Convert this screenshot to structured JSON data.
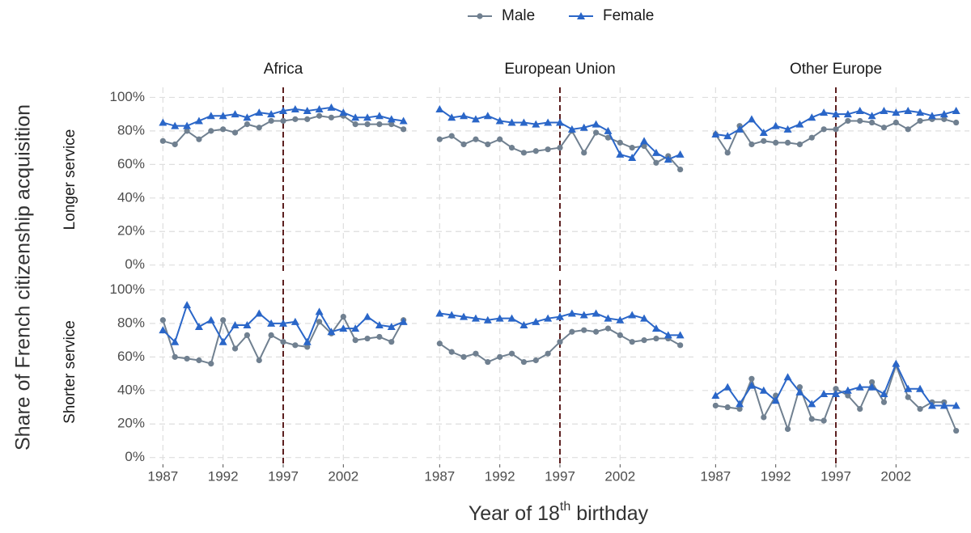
{
  "chart_data": {
    "type": "line",
    "y_label": "Share of French citizenship acquisition",
    "x_label": [
      "Year of 18",
      "th",
      " birthday"
    ],
    "legend": "top",
    "grid": true,
    "vline": 1997,
    "vline_color": "#5c1f1f",
    "x": [
      1987,
      1988,
      1989,
      1990,
      1991,
      1992,
      1993,
      1994,
      1995,
      1996,
      1997,
      1998,
      1999,
      2000,
      2001,
      2002,
      2003,
      2004,
      2005,
      2006,
      2007
    ],
    "xlim": [
      1985.9,
      2008.1
    ],
    "xticks": [
      1987,
      1992,
      1997,
      2002
    ],
    "ylim": [
      -4,
      106
    ],
    "yticks": [
      {
        "value": 0,
        "label": "0%"
      },
      {
        "value": 20,
        "label": "20%"
      },
      {
        "value": 40,
        "label": "40%"
      },
      {
        "value": 60,
        "label": "60%"
      },
      {
        "value": 80,
        "label": "80%"
      },
      {
        "value": 100,
        "label": "100%"
      }
    ],
    "columns": [
      "Africa",
      "European Union",
      "Other Europe"
    ],
    "rows": [
      "Longer service",
      "Shorter service"
    ],
    "series": [
      {
        "name": "Male",
        "color": "#708090",
        "marker": "circle"
      },
      {
        "name": "Female",
        "color": "#2a66c8",
        "marker": "triangle"
      }
    ],
    "panels": [
      [
        {
          "series": [
            {
              "values": [
                74,
                72,
                80,
                75,
                80,
                81,
                79,
                84,
                82,
                86,
                86,
                87,
                87,
                89,
                88,
                89,
                84,
                84,
                84,
                84,
                81
              ]
            },
            {
              "values": [
                85,
                83,
                83,
                86,
                89,
                89,
                90,
                88,
                91,
                90,
                92,
                93,
                92,
                93,
                94,
                91,
                88,
                88,
                89,
                87,
                86
              ]
            }
          ]
        },
        {
          "series": [
            {
              "values": [
                75,
                77,
                72,
                75,
                72,
                75,
                70,
                67,
                68,
                69,
                70,
                80,
                67,
                79,
                76,
                73,
                70,
                71,
                61,
                65,
                57
              ]
            },
            {
              "values": [
                93,
                88,
                89,
                87,
                89,
                86,
                85,
                85,
                84,
                85,
                85,
                81,
                82,
                84,
                80,
                66,
                64,
                74,
                67,
                63,
                66
              ]
            }
          ]
        },
        {
          "series": [
            {
              "values": [
                78,
                67,
                83,
                72,
                74,
                73,
                73,
                72,
                76,
                81,
                81,
                86,
                86,
                85,
                82,
                85,
                81,
                86,
                87,
                87,
                85
              ]
            },
            {
              "values": [
                78,
                77,
                81,
                87,
                79,
                83,
                81,
                84,
                88,
                91,
                90,
                90,
                92,
                89,
                92,
                91,
                92,
                91,
                89,
                90,
                92
              ]
            }
          ]
        }
      ],
      [
        {
          "series": [
            {
              "values": [
                82,
                60,
                59,
                58,
                56,
                82,
                65,
                73,
                58,
                73,
                69,
                67,
                66,
                81,
                74,
                84,
                70,
                71,
                72,
                69,
                82
              ]
            },
            {
              "values": [
                76,
                69,
                91,
                78,
                82,
                69,
                79,
                79,
                86,
                80,
                80,
                81,
                69,
                87,
                75,
                77,
                77,
                84,
                79,
                78,
                81
              ]
            }
          ]
        },
        {
          "series": [
            {
              "values": [
                68,
                63,
                60,
                62,
                57,
                60,
                62,
                57,
                58,
                62,
                69,
                75,
                76,
                75,
                77,
                73,
                69,
                70,
                71,
                71,
                67
              ]
            },
            {
              "values": [
                86,
                85,
                84,
                83,
                82,
                83,
                83,
                79,
                81,
                83,
                84,
                86,
                85,
                86,
                83,
                82,
                85,
                83,
                77,
                73,
                73
              ]
            }
          ]
        },
        {
          "series": [
            {
              "values": [
                31,
                30,
                29,
                47,
                24,
                37,
                17,
                42,
                23,
                22,
                41,
                37,
                29,
                45,
                33,
                55,
                36,
                29,
                33,
                33,
                16
              ]
            },
            {
              "values": [
                37,
                42,
                32,
                43,
                40,
                34,
                48,
                39,
                32,
                38,
                38,
                40,
                42,
                42,
                38,
                56,
                41,
                41,
                31,
                31,
                31
              ]
            }
          ]
        }
      ]
    ]
  }
}
